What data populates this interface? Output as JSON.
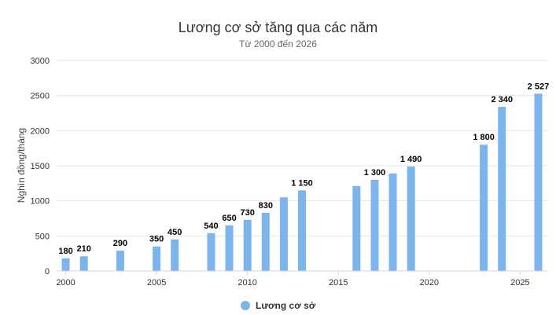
{
  "chart_data": {
    "type": "bar",
    "title": "Lương cơ sở tăng qua các năm",
    "subtitle": "Từ 2000 đến 2026",
    "ylabel": "Nghìn đồng/tháng",
    "xlim": [
      1999.5,
      2026.5
    ],
    "ylim": [
      0,
      3000
    ],
    "xticks": [
      2000,
      2005,
      2010,
      2015,
      2020,
      2025
    ],
    "yticks": [
      0,
      500,
      1000,
      1500,
      2000,
      2500,
      3000
    ],
    "grid": true,
    "legend_position": "bottom",
    "series": [
      {
        "name": "Lương cơ sở",
        "color": "#7cb5ec",
        "points": [
          {
            "x": 2000,
            "y": 180,
            "label": "180"
          },
          {
            "x": 2001,
            "y": 210,
            "label": "210"
          },
          {
            "x": 2003,
            "y": 290,
            "label": "290"
          },
          {
            "x": 2005,
            "y": 350,
            "label": "350"
          },
          {
            "x": 2006,
            "y": 450,
            "label": "450"
          },
          {
            "x": 2008,
            "y": 540,
            "label": "540"
          },
          {
            "x": 2009,
            "y": 650,
            "label": "650"
          },
          {
            "x": 2010,
            "y": 730,
            "label": "730"
          },
          {
            "x": 2011,
            "y": 830,
            "label": "830"
          },
          {
            "x": 2012,
            "y": 1050,
            "label": ""
          },
          {
            "x": 2013,
            "y": 1150,
            "label": "1 150"
          },
          {
            "x": 2016,
            "y": 1210,
            "label": ""
          },
          {
            "x": 2017,
            "y": 1300,
            "label": "1 300"
          },
          {
            "x": 2018,
            "y": 1390,
            "label": ""
          },
          {
            "x": 2019,
            "y": 1490,
            "label": "1 490"
          },
          {
            "x": 2023,
            "y": 1800,
            "label": "1 800"
          },
          {
            "x": 2024,
            "y": 2340,
            "label": "2 340"
          },
          {
            "x": 2026,
            "y": 2527,
            "label": "2 527"
          }
        ]
      }
    ]
  }
}
